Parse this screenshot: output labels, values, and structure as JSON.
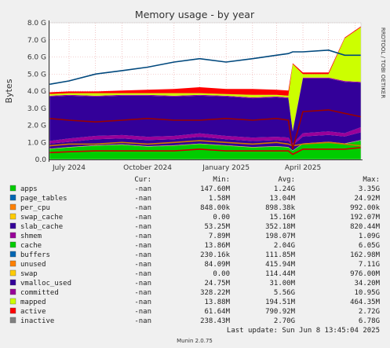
{
  "chart_data": {
    "type": "area",
    "title": "Memory usage - by year",
    "ylabel": "Bytes",
    "side_label": "RRDTOOL / TOBI OETIKER",
    "ylim": [
      0,
      8
    ],
    "y_unit": "G",
    "y_ticks": [
      "0.0",
      "1.0 G",
      "2.0 G",
      "3.0 G",
      "4.0 G",
      "5.0 G",
      "6.0 G",
      "7.0 G",
      "8.0 G"
    ],
    "x_range": [
      "2024-06-08",
      "2025-06-08"
    ],
    "x_ticks": [
      {
        "date": "2024-07-01",
        "label": "July 2024"
      },
      {
        "date": "2024-10-01",
        "label": "October 2024"
      },
      {
        "date": "2025-01-01",
        "label": "January 2025"
      },
      {
        "date": "2025-04-01",
        "label": "April 2025"
      }
    ],
    "x_month_grid": [
      "2024-07-01",
      "2024-08-01",
      "2024-09-01",
      "2024-10-01",
      "2024-11-01",
      "2024-12-01",
      "2025-01-01",
      "2025-02-01",
      "2025-03-01",
      "2025-04-01",
      "2025-05-01",
      "2025-06-01"
    ],
    "stack_dates": [
      "2024-06-08",
      "2024-07-01",
      "2024-08-01",
      "2024-09-01",
      "2024-10-01",
      "2024-11-01",
      "2024-12-01",
      "2025-01-01",
      "2025-02-01",
      "2025-03-01",
      "2025-03-15",
      "2025-03-20",
      "2025-04-01",
      "2025-05-01",
      "2025-05-20",
      "2025-06-08"
    ],
    "stacked_series": [
      {
        "name": "apps",
        "color": "#00cc00",
        "values": [
          0.6,
          0.7,
          0.8,
          0.85,
          0.75,
          0.8,
          0.9,
          0.8,
          0.7,
          0.75,
          0.7,
          0.5,
          0.9,
          1.0,
          0.9,
          1.1
        ]
      },
      {
        "name": "page_tables",
        "color": "#0066b3",
        "values": [
          0.01,
          0.01,
          0.01,
          0.01,
          0.01,
          0.01,
          0.01,
          0.01,
          0.01,
          0.01,
          0.01,
          0.01,
          0.02,
          0.02,
          0.02,
          0.02
        ]
      },
      {
        "name": "per_cpu",
        "color": "#ff8000",
        "values": [
          0.001,
          0.001,
          0.001,
          0.001,
          0.001,
          0.001,
          0.001,
          0.001,
          0.001,
          0.001,
          0.001,
          0.001,
          0.001,
          0.001,
          0.001,
          0.001
        ]
      },
      {
        "name": "swap_cache",
        "color": "#ffcc00",
        "values": [
          0.02,
          0.02,
          0.02,
          0.02,
          0.02,
          0.02,
          0.02,
          0.02,
          0.02,
          0.02,
          0.02,
          0.02,
          0.02,
          0.02,
          0.02,
          0.02
        ]
      },
      {
        "name": "slab_cache",
        "color": "#330099",
        "values": [
          0.3,
          0.3,
          0.35,
          0.35,
          0.35,
          0.35,
          0.4,
          0.35,
          0.35,
          0.35,
          0.35,
          0.3,
          0.4,
          0.4,
          0.4,
          0.45
        ]
      },
      {
        "name": "shmem",
        "color": "#990099",
        "values": [
          0.15,
          0.2,
          0.2,
          0.2,
          0.2,
          0.2,
          0.2,
          0.2,
          0.2,
          0.2,
          0.2,
          0.1,
          0.2,
          0.2,
          0.2,
          0.3
        ]
      },
      {
        "name": "cache",
        "color": "#330099",
        "values": [
          2.6,
          2.5,
          2.3,
          2.3,
          2.4,
          2.3,
          2.2,
          2.3,
          2.3,
          2.3,
          2.3,
          0.7,
          3.2,
          3.1,
          3.0,
          2.6
        ]
      },
      {
        "name": "buffers",
        "color": "#990099",
        "values": [
          0.05,
          0.05,
          0.05,
          0.05,
          0.05,
          0.05,
          0.05,
          0.05,
          0.05,
          0.05,
          0.05,
          0.05,
          0.05,
          0.05,
          0.05,
          0.05
        ]
      },
      {
        "name": "unused",
        "color": "#ccff00",
        "values": [
          0.1,
          0.1,
          0.15,
          0.1,
          0.1,
          0.15,
          0.1,
          0.1,
          0.15,
          0.1,
          0.1,
          3.9,
          0.2,
          0.2,
          2.5,
          3.2
        ]
      },
      {
        "name": "swap",
        "color": "#ff0000",
        "values": [
          0.1,
          0.1,
          0.1,
          0.15,
          0.2,
          0.25,
          0.35,
          0.3,
          0.35,
          0.3,
          0.3,
          0.05,
          0.1,
          0.1,
          0.05,
          0.05
        ]
      }
    ],
    "line_series": [
      {
        "name": "committed",
        "color": "#00487d",
        "values": [
          4.4,
          4.6,
          5.0,
          5.2,
          5.4,
          5.7,
          5.9,
          5.7,
          5.9,
          6.1,
          6.2,
          6.3,
          6.3,
          6.4,
          6.1,
          6.1
        ]
      },
      {
        "name": "mapped",
        "color": "#cc0000",
        "values": [
          0.4,
          0.45,
          0.5,
          0.5,
          0.5,
          0.5,
          0.6,
          0.5,
          0.5,
          0.5,
          0.5,
          0.3,
          0.6,
          0.6,
          0.6,
          0.7
        ]
      },
      {
        "name": "active",
        "color": "#cc7a00",
        "values": [
          0.8,
          0.9,
          0.9,
          1.0,
          0.9,
          1.0,
          1.1,
          1.0,
          0.9,
          1.0,
          0.9,
          0.8,
          0.9,
          1.0,
          0.9,
          0.8
        ]
      },
      {
        "name": "inactive",
        "color": "#990000",
        "values": [
          2.4,
          2.3,
          2.2,
          2.3,
          2.4,
          2.3,
          2.3,
          2.4,
          2.3,
          2.4,
          2.3,
          0.6,
          2.8,
          2.9,
          2.7,
          2.5
        ]
      }
    ],
    "legend": {
      "headers": {
        "cur": "Cur:",
        "min": "Min:",
        "avg": "Avg:",
        "max": "Max:"
      },
      "rows": [
        {
          "name": "apps",
          "color": "#00cc00",
          "cur": "-nan",
          "min": "147.60M",
          "avg": "1.24G",
          "max": "3.35G"
        },
        {
          "name": "page_tables",
          "color": "#0066b3",
          "cur": "-nan",
          "min": "1.58M",
          "avg": "13.04M",
          "max": "24.92M"
        },
        {
          "name": "per_cpu",
          "color": "#ff8000",
          "cur": "-nan",
          "min": "848.00k",
          "avg": "898.38k",
          "max": "992.00k"
        },
        {
          "name": "swap_cache",
          "color": "#ffcc00",
          "cur": "-nan",
          "min": "0.00",
          "avg": "15.16M",
          "max": "192.07M"
        },
        {
          "name": "slab_cache",
          "color": "#330099",
          "cur": "-nan",
          "min": "53.25M",
          "avg": "352.18M",
          "max": "820.44M"
        },
        {
          "name": "shmem",
          "color": "#990099",
          "cur": "-nan",
          "min": "7.89M",
          "avg": "198.07M",
          "max": "1.09G"
        },
        {
          "name": "cache",
          "color": "#00cc00",
          "cur": "-nan",
          "min": "13.86M",
          "avg": "2.04G",
          "max": "6.05G"
        },
        {
          "name": "buffers",
          "color": "#0066b3",
          "cur": "-nan",
          "min": "230.16k",
          "avg": "111.85M",
          "max": "162.98M"
        },
        {
          "name": "unused",
          "color": "#ff8000",
          "cur": "-nan",
          "min": "84.09M",
          "avg": "415.94M",
          "max": "7.11G"
        },
        {
          "name": "swap",
          "color": "#ffcc00",
          "cur": "-nan",
          "min": "0.00",
          "avg": "114.44M",
          "max": "976.00M"
        },
        {
          "name": "vmalloc_used",
          "color": "#330099",
          "cur": "-nan",
          "min": "24.75M",
          "avg": "31.00M",
          "max": "34.20M"
        },
        {
          "name": "committed",
          "color": "#990099",
          "cur": "-nan",
          "min": "328.22M",
          "avg": "5.56G",
          "max": "10.95G"
        },
        {
          "name": "mapped",
          "color": "#ccff00",
          "cur": "-nan",
          "min": "13.88M",
          "avg": "194.51M",
          "max": "464.35M"
        },
        {
          "name": "active",
          "color": "#ff0000",
          "cur": "-nan",
          "min": "61.64M",
          "avg": "790.92M",
          "max": "2.72G"
        },
        {
          "name": "inactive",
          "color": "#808080",
          "cur": "-nan",
          "min": "238.43M",
          "avg": "2.70G",
          "max": "6.78G"
        }
      ]
    },
    "last_update": "Last update: Sun Jun  8 13:45:04 2025",
    "footer": "Munin 2.0.75"
  }
}
